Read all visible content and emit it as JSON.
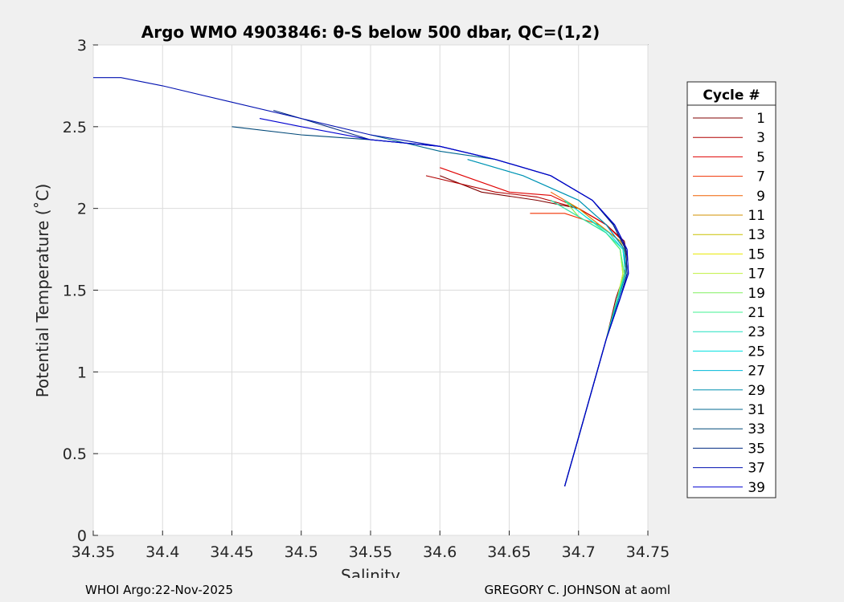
{
  "chart_data": {
    "type": "line",
    "title": "Argo WMO 4903846: θ-S below 500 dbar,  QC=(1,2)",
    "xlabel": "Salinity",
    "ylabel": "Potential Temperature (˚C)",
    "xlim": [
      34.35,
      34.75
    ],
    "ylim": [
      0,
      3
    ],
    "xticks": [
      "34.35",
      "34.4",
      "34.45",
      "34.5",
      "34.55",
      "34.6",
      "34.65",
      "34.7",
      "34.75"
    ],
    "yticks": [
      "0",
      "0.5",
      "1",
      "1.5",
      "2",
      "2.5",
      "3"
    ],
    "grid": true,
    "legend": {
      "title": "Cycle #",
      "placement": "right-outside",
      "entries": [
        "1",
        "3",
        "5",
        "7",
        "9",
        "11",
        "13",
        "15",
        "17",
        "19",
        "21",
        "23",
        "25",
        "27",
        "29",
        "31",
        "33",
        "35",
        "37",
        "39"
      ],
      "colors": [
        "#800000",
        "#b00000",
        "#e00000",
        "#f03000",
        "#f06000",
        "#d09000",
        "#c8c000",
        "#e8e800",
        "#c0f040",
        "#80f060",
        "#40f090",
        "#20e0c0",
        "#00e0e0",
        "#00b8d8",
        "#0090b0",
        "#006890",
        "#004878",
        "#002880",
        "#0010b0",
        "#0000d0"
      ]
    },
    "series": [
      {
        "x": [
          34.69,
          34.7,
          34.71,
          34.72,
          34.727,
          34.733,
          34.735,
          34.733,
          34.72,
          34.7,
          34.67,
          34.63,
          34.6
        ],
        "y": [
          0.3,
          0.6,
          0.9,
          1.2,
          1.45,
          1.6,
          1.7,
          1.8,
          1.9,
          2.0,
          2.05,
          2.1,
          2.2
        ]
      },
      {
        "x": [
          34.69,
          34.7,
          34.71,
          34.72,
          34.728,
          34.733,
          34.735,
          34.732,
          34.72,
          34.7,
          34.67,
          34.64,
          34.59
        ],
        "y": [
          0.3,
          0.6,
          0.9,
          1.2,
          1.45,
          1.6,
          1.7,
          1.8,
          1.9,
          2.0,
          2.07,
          2.1,
          2.2
        ]
      },
      {
        "x": [
          34.69,
          34.7,
          34.71,
          34.72,
          34.728,
          34.733,
          34.735,
          34.732,
          34.72,
          34.7,
          34.68,
          34.65,
          34.6
        ],
        "y": [
          0.3,
          0.6,
          0.9,
          1.2,
          1.45,
          1.6,
          1.7,
          1.8,
          1.9,
          2.0,
          2.08,
          2.1,
          2.25
        ]
      },
      {
        "x": [
          34.69,
          34.7,
          34.71,
          34.72,
          34.728,
          34.733,
          34.735,
          34.73,
          34.715,
          34.69,
          34.665
        ],
        "y": [
          0.3,
          0.6,
          0.9,
          1.2,
          1.45,
          1.6,
          1.7,
          1.8,
          1.9,
          1.97,
          1.97
        ]
      },
      {
        "x": [
          34.69,
          34.7,
          34.71,
          34.72,
          34.728,
          34.733,
          34.735,
          34.73,
          34.715,
          34.7,
          34.68
        ],
        "y": [
          0.3,
          0.6,
          0.9,
          1.2,
          1.45,
          1.6,
          1.7,
          1.8,
          1.9,
          2.0,
          2.1
        ]
      },
      {
        "x": [
          34.69,
          34.7,
          34.71,
          34.72,
          34.728,
          34.733,
          34.735,
          34.73,
          34.715,
          34.7,
          34.69
        ],
        "y": [
          0.3,
          0.6,
          0.9,
          1.2,
          1.45,
          1.6,
          1.7,
          1.8,
          1.9,
          2.0,
          2.05
        ]
      },
      {
        "x": [
          34.69,
          34.7,
          34.71,
          34.72,
          34.728,
          34.732,
          34.73,
          34.72,
          34.7,
          34.68
        ],
        "y": [
          0.3,
          0.6,
          0.9,
          1.2,
          1.45,
          1.6,
          1.75,
          1.85,
          1.95,
          2.05
        ]
      },
      {
        "x": [
          34.69,
          34.7,
          34.71,
          34.72,
          34.728,
          34.732,
          34.73,
          34.72,
          34.7,
          34.69
        ],
        "y": [
          0.3,
          0.6,
          0.9,
          1.2,
          1.45,
          1.6,
          1.75,
          1.85,
          1.95,
          2.05
        ]
      },
      {
        "x": [
          34.69,
          34.7,
          34.71,
          34.72,
          34.728,
          34.732,
          34.73,
          34.72,
          34.7,
          34.68
        ],
        "y": [
          0.3,
          0.6,
          0.9,
          1.2,
          1.45,
          1.6,
          1.75,
          1.85,
          1.95,
          2.05
        ]
      },
      {
        "x": [
          34.69,
          34.7,
          34.71,
          34.72,
          34.728,
          34.733,
          34.73,
          34.72,
          34.7,
          34.69
        ],
        "y": [
          0.3,
          0.6,
          0.9,
          1.2,
          1.45,
          1.6,
          1.75,
          1.85,
          1.95,
          2.05
        ]
      },
      {
        "x": [
          34.69,
          34.7,
          34.71,
          34.72,
          34.728,
          34.733,
          34.73,
          34.72,
          34.705,
          34.69
        ],
        "y": [
          0.3,
          0.6,
          0.9,
          1.2,
          1.45,
          1.6,
          1.75,
          1.85,
          1.95,
          2.05
        ]
      },
      {
        "x": [
          34.69,
          34.7,
          34.71,
          34.72,
          34.728,
          34.734,
          34.732,
          34.72,
          34.7,
          34.68
        ],
        "y": [
          0.3,
          0.6,
          0.9,
          1.2,
          1.45,
          1.6,
          1.75,
          1.85,
          1.95,
          2.05
        ]
      },
      {
        "x": [
          34.69,
          34.7,
          34.71,
          34.72,
          34.729,
          34.734,
          34.732,
          34.722,
          34.705,
          34.69
        ],
        "y": [
          0.3,
          0.6,
          0.9,
          1.2,
          1.45,
          1.6,
          1.75,
          1.85,
          1.95,
          2.05
        ]
      },
      {
        "x": [
          34.69,
          34.7,
          34.71,
          34.72,
          34.729,
          34.734,
          34.733,
          34.72,
          34.7,
          34.66,
          34.62
        ],
        "y": [
          0.3,
          0.6,
          0.9,
          1.2,
          1.45,
          1.6,
          1.75,
          1.9,
          2.05,
          2.2,
          2.3
        ]
      },
      {
        "x": [
          34.69,
          34.7,
          34.71,
          34.72,
          34.729,
          34.734,
          34.733,
          34.72,
          34.7,
          34.66,
          34.62
        ],
        "y": [
          0.3,
          0.6,
          0.9,
          1.2,
          1.45,
          1.6,
          1.75,
          1.9,
          2.05,
          2.2,
          2.3
        ]
      },
      {
        "x": [
          34.69,
          34.7,
          34.71,
          34.72,
          34.73,
          34.735,
          34.734,
          34.725,
          34.71,
          34.68,
          34.64,
          34.6,
          34.55
        ],
        "y": [
          0.3,
          0.6,
          0.9,
          1.2,
          1.45,
          1.6,
          1.75,
          1.9,
          2.05,
          2.2,
          2.3,
          2.35,
          2.45
        ]
      },
      {
        "x": [
          34.69,
          34.7,
          34.71,
          34.72,
          34.73,
          34.735,
          34.734,
          34.725,
          34.71,
          34.68,
          34.64,
          34.6,
          34.55,
          34.5,
          34.45
        ],
        "y": [
          0.3,
          0.6,
          0.9,
          1.2,
          1.45,
          1.6,
          1.75,
          1.9,
          2.05,
          2.2,
          2.3,
          2.38,
          2.42,
          2.45,
          2.5
        ]
      },
      {
        "x": [
          34.69,
          34.7,
          34.71,
          34.72,
          34.73,
          34.735,
          34.734,
          34.725,
          34.71,
          34.68,
          34.64,
          34.6,
          34.55,
          34.5,
          34.48
        ],
        "y": [
          0.3,
          0.6,
          0.9,
          1.2,
          1.45,
          1.6,
          1.75,
          1.9,
          2.05,
          2.2,
          2.3,
          2.38,
          2.42,
          2.55,
          2.6
        ]
      },
      {
        "x": [
          34.69,
          34.7,
          34.71,
          34.72,
          34.73,
          34.736,
          34.735,
          34.726,
          34.71,
          34.68,
          34.64,
          34.6,
          34.55,
          34.5,
          34.45,
          34.4,
          34.37,
          34.35
        ],
        "y": [
          0.3,
          0.6,
          0.9,
          1.2,
          1.45,
          1.6,
          1.75,
          1.9,
          2.05,
          2.2,
          2.3,
          2.38,
          2.45,
          2.55,
          2.65,
          2.75,
          2.8,
          2.8
        ]
      },
      {
        "x": [
          34.69,
          34.7,
          34.71,
          34.72,
          34.73,
          34.736,
          34.735,
          34.726,
          34.71,
          34.68,
          34.64,
          34.6,
          34.55,
          34.5,
          34.47
        ],
        "y": [
          0.3,
          0.6,
          0.9,
          1.2,
          1.45,
          1.6,
          1.75,
          1.9,
          2.05,
          2.2,
          2.3,
          2.38,
          2.42,
          2.5,
          2.55
        ]
      }
    ]
  },
  "footer": {
    "left": "WHOI Argo:22-Nov-2025",
    "right": "GREGORY C. JOHNSON at aoml"
  }
}
